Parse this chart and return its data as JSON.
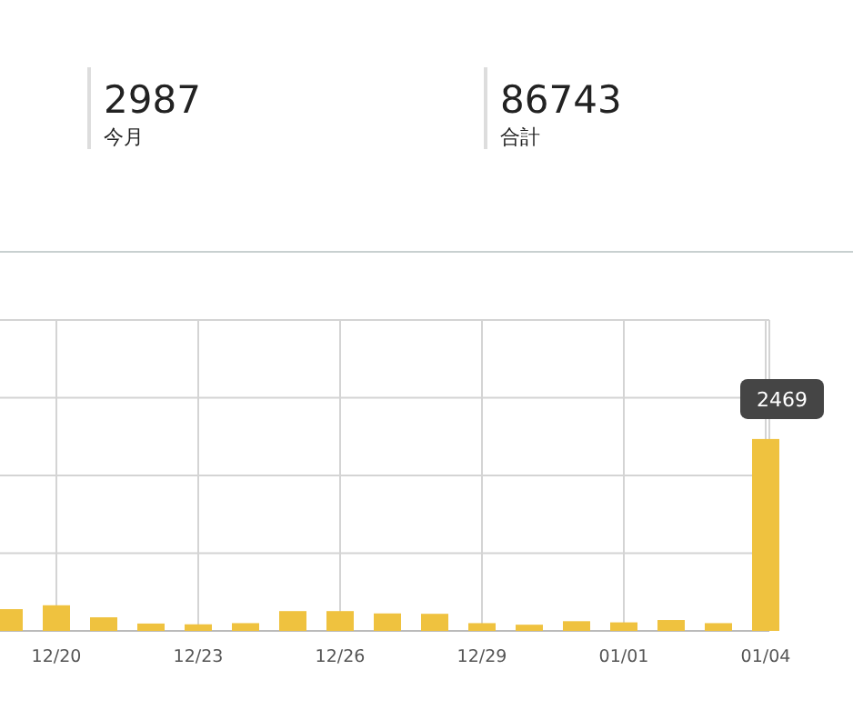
{
  "chart_data": [
    {
      "type": "other",
      "annotations": [
        "2987",
        "今月",
        "86743",
        "合計"
      ]
    },
    {
      "type": "bar",
      "grid": true,
      "color": "#efc23f",
      "tick_labels": "x",
      "ylim": [
        0,
        4000
      ],
      "yticks": [
        {
          "value": 0,
          "label": null
        },
        {
          "value": 1000,
          "label": null
        },
        {
          "value": 2000,
          "label": null
        },
        {
          "value": 3000,
          "label": null
        },
        {
          "value": 4000,
          "label": null
        }
      ],
      "categories": [
        null,
        "12/20",
        null,
        null,
        "12/23",
        null,
        null,
        "12/26",
        null,
        null,
        "12/29",
        null,
        null,
        "01/01",
        null,
        null,
        "01/04"
      ],
      "values": [
        280,
        330,
        175,
        95,
        85,
        100,
        255,
        255,
        225,
        220,
        100,
        80,
        125,
        110,
        140,
        100,
        2469
      ],
      "value_labels": [
        null,
        null,
        null,
        null,
        null,
        null,
        null,
        null,
        null,
        null,
        null,
        null,
        null,
        null,
        null,
        null,
        "2469"
      ]
    }
  ]
}
